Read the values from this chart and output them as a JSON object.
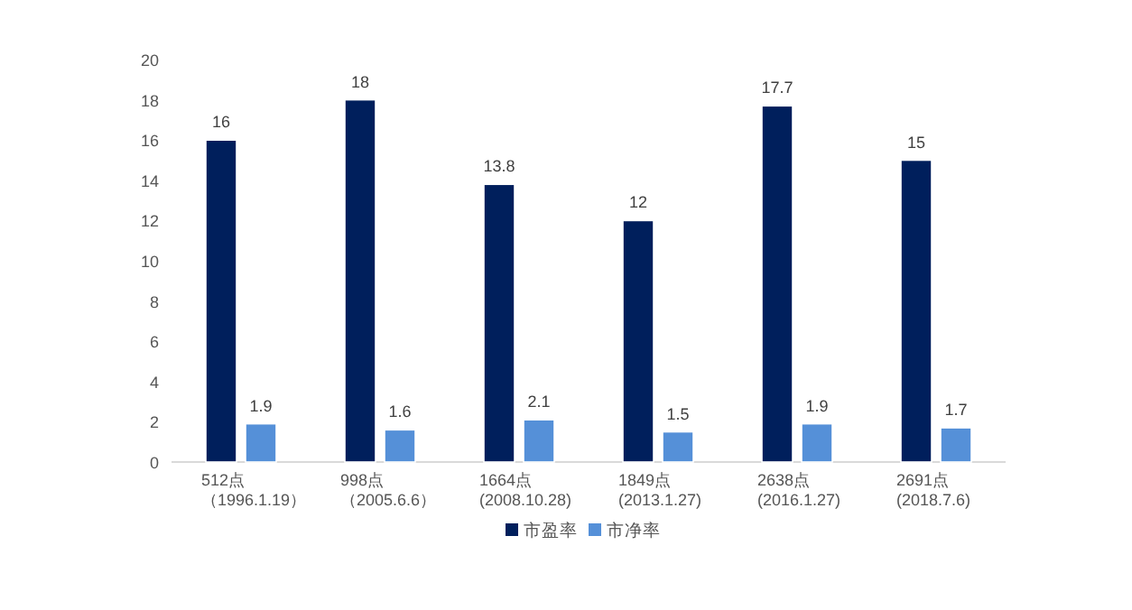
{
  "chart_data": {
    "type": "bar",
    "categories": [
      "512点（1996.1.19）",
      "998点（2005.6.6）",
      "1664点(2008.10.28)",
      "1849点(2013.1.27)",
      "2638点(2016.1.27)",
      "2691点(2018.7.6)"
    ],
    "series": [
      {
        "name": "市盈率",
        "color": "#001f5c",
        "values": [
          16,
          18,
          13.8,
          12,
          17.7,
          15
        ]
      },
      {
        "name": "市净率",
        "color": "#5590d8",
        "values": [
          1.9,
          1.6,
          2.1,
          1.5,
          1.9,
          1.7
        ]
      }
    ],
    "ylim": [
      0,
      20
    ],
    "yticks": [
      0,
      2,
      4,
      6,
      8,
      10,
      12,
      14,
      16,
      18,
      20
    ],
    "data_labels": true,
    "grid": false,
    "legend": "bottom"
  }
}
